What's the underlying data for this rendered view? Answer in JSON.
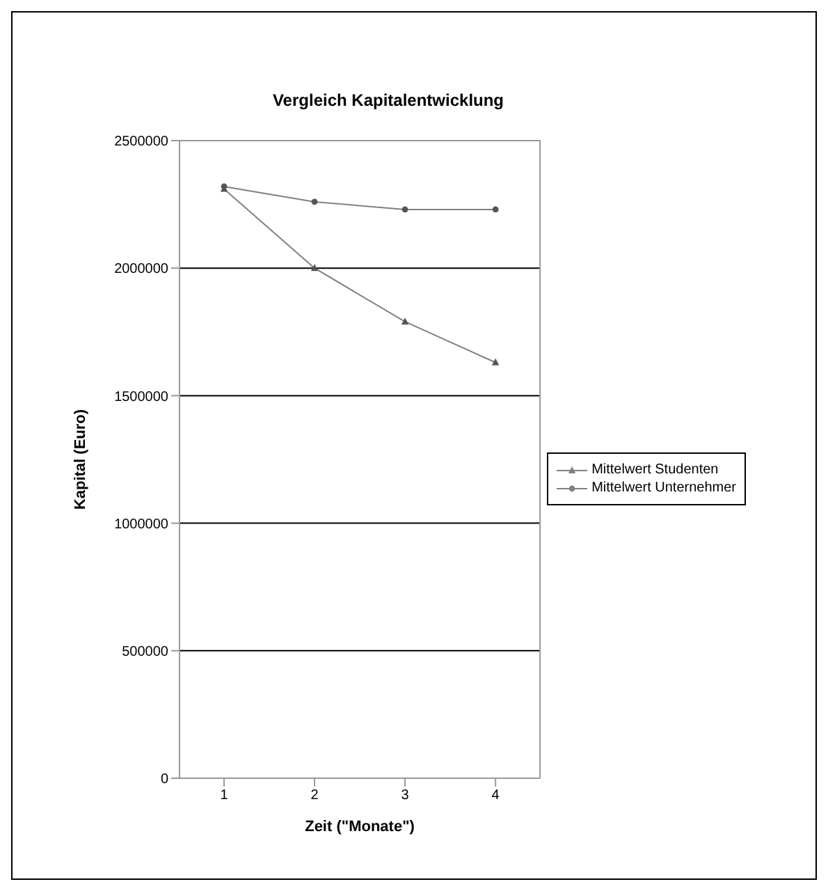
{
  "chart_data": {
    "type": "line",
    "title": "Vergleich Kapitalentwicklung",
    "xlabel": "Zeit (\"Monate\")",
    "ylabel": "Kapital (Euro)",
    "categories": [
      "1",
      "2",
      "3",
      "4"
    ],
    "series": [
      {
        "name": "Mittelwert Studenten",
        "color": "#808080",
        "marker": "triangle",
        "values": [
          2310000,
          2000000,
          1790000,
          1630000
        ]
      },
      {
        "name": "Mittelwert Unternehmer",
        "color": "#808080",
        "marker": "circle",
        "values": [
          2320000,
          2260000,
          2230000,
          2230000
        ]
      }
    ],
    "ylim": [
      0,
      2500000
    ],
    "yticks": [
      0,
      500000,
      1000000,
      1500000,
      2000000,
      2500000
    ],
    "grid": "y",
    "legend": "right"
  }
}
